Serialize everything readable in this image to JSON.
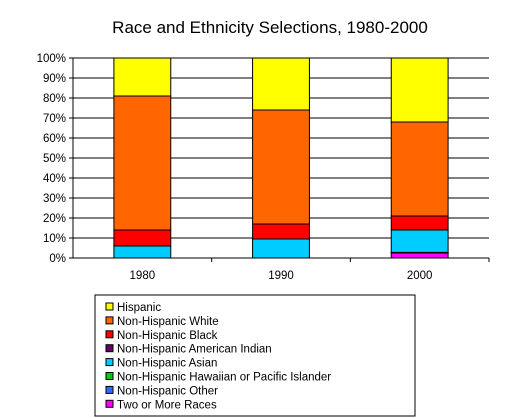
{
  "chart_data": {
    "type": "bar",
    "stacked": true,
    "title": "Race and Ethnicity Selections, 1980-2000",
    "categories": [
      "1980",
      "1990",
      "2000"
    ],
    "ylim": [
      0,
      100
    ],
    "y_ticks": [
      "0%",
      "10%",
      "20%",
      "30%",
      "40%",
      "50%",
      "60%",
      "70%",
      "80%",
      "90%",
      "100%"
    ],
    "grid": true,
    "legend_position": "bottom",
    "series": [
      {
        "name": "Two or More Races",
        "color": "#ff00ff",
        "values": [
          0,
          0,
          2.5
        ]
      },
      {
        "name": "Non-Hispanic Other",
        "color": "#3366ff",
        "values": [
          0,
          0,
          0.2
        ]
      },
      {
        "name": "Non-Hispanic Hawaiian or Pacific Islander",
        "color": "#00cc00",
        "values": [
          0,
          0,
          0.1
        ]
      },
      {
        "name": "Non-Hispanic Asian",
        "color": "#00ccff",
        "values": [
          6,
          9.5,
          11.2
        ]
      },
      {
        "name": "Non-Hispanic American Indian",
        "color": "#660066",
        "values": [
          0,
          0,
          0
        ]
      },
      {
        "name": "Non-Hispanic Black",
        "color": "#ff0000",
        "values": [
          8,
          7.5,
          7
        ]
      },
      {
        "name": "Non-Hispanic White",
        "color": "#ff6600",
        "values": [
          67,
          57,
          47
        ]
      },
      {
        "name": "Hispanic",
        "color": "#ffff00",
        "values": [
          19,
          26,
          32
        ]
      }
    ],
    "legend_order": [
      "Hispanic",
      "Non-Hispanic White",
      "Non-Hispanic Black",
      "Non-Hispanic American Indian",
      "Non-Hispanic Asian",
      "Non-Hispanic Hawaiian or Pacific Islander",
      "Non-Hispanic Other",
      "Two or More Races"
    ]
  }
}
